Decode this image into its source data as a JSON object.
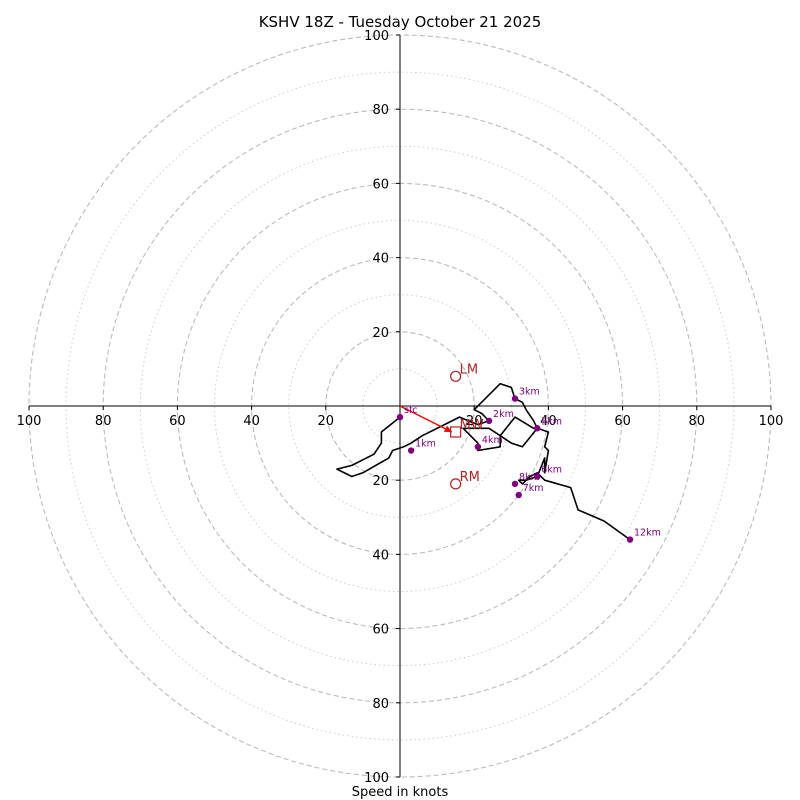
{
  "chart_data": {
    "type": "hodograph",
    "title": "KSHV 18Z - Tuesday October 21 2025",
    "xlabel": "Speed in knots",
    "units": "knots",
    "range": [
      -100,
      100
    ],
    "ring_major": [
      20,
      40,
      60,
      80,
      100
    ],
    "ring_minor": [
      10,
      30,
      50,
      70,
      90
    ],
    "tick_labels": {
      "right": [
        "20",
        "40",
        "60",
        "80",
        "100"
      ],
      "left": [
        "20",
        "40",
        "60",
        "80",
        "100"
      ],
      "top": [
        "20",
        "40",
        "60",
        "80",
        "100"
      ],
      "bottom": [
        "20",
        "40",
        "60",
        "80",
        "100"
      ]
    },
    "colors": {
      "trace": "#000000",
      "height_marker": "#800080",
      "storm_motion": "#b22222",
      "inflow_arrow": "#ff0000",
      "grid": "#bbbbbb"
    },
    "trace": [
      [
        0,
        -3
      ],
      [
        -5,
        -7
      ],
      [
        -5,
        -10
      ],
      [
        -7,
        -13
      ],
      [
        -13,
        -16
      ],
      [
        -17,
        -17
      ],
      [
        -13,
        -19
      ],
      [
        -10,
        -18
      ],
      [
        -3,
        -14
      ],
      [
        -2,
        -12
      ],
      [
        1,
        -11
      ],
      [
        3,
        -10
      ],
      [
        6,
        -8
      ],
      [
        12,
        -5
      ],
      [
        16,
        -3
      ],
      [
        21,
        -5
      ],
      [
        24,
        -4
      ],
      [
        22,
        -2
      ],
      [
        20,
        -1
      ],
      [
        27,
        6
      ],
      [
        30,
        5
      ],
      [
        31,
        2
      ],
      [
        33,
        1
      ],
      [
        34,
        -1
      ],
      [
        36,
        -4
      ],
      [
        37,
        -6
      ],
      [
        36,
        -6
      ],
      [
        31,
        -3
      ],
      [
        27,
        -8
      ],
      [
        27,
        -11
      ],
      [
        21,
        -12
      ],
      [
        21,
        -10
      ],
      [
        17,
        -6
      ],
      [
        24,
        -6
      ],
      [
        27,
        -8
      ],
      [
        30,
        -10
      ],
      [
        33,
        -11
      ],
      [
        37,
        -6
      ],
      [
        40,
        -7
      ],
      [
        39,
        -11
      ],
      [
        40,
        -12
      ],
      [
        39,
        -18
      ],
      [
        39,
        -14
      ],
      [
        37,
        -19
      ],
      [
        34,
        -20
      ],
      [
        32,
        -20
      ],
      [
        33,
        -21
      ],
      [
        35,
        -19
      ],
      [
        37,
        -18
      ],
      [
        39,
        -20
      ],
      [
        46,
        -22
      ],
      [
        48,
        -28
      ],
      [
        55,
        -31
      ],
      [
        62,
        -36
      ]
    ],
    "height_markers": [
      {
        "label": "sfc",
        "u": 0,
        "v": -3
      },
      {
        "label": "1km",
        "u": 3,
        "v": -12
      },
      {
        "label": "2km",
        "u": 24,
        "v": -4
      },
      {
        "label": "3km",
        "u": 31,
        "v": 2
      },
      {
        "label": "4km",
        "u": 21,
        "v": -11
      },
      {
        "label": "5km",
        "u": 37,
        "v": -6
      },
      {
        "label": "6km",
        "u": 37,
        "v": -19
      },
      {
        "label": "7km",
        "u": 32,
        "v": -24
      },
      {
        "label": "8km",
        "u": 31,
        "v": -21
      },
      {
        "label": "12km",
        "u": 62,
        "v": -36
      }
    ],
    "storm_motions": [
      {
        "label": "LM",
        "u": 15,
        "v": 8,
        "marker": "circle"
      },
      {
        "label": "MW",
        "u": 15,
        "v": -7,
        "marker": "square"
      },
      {
        "label": "RM",
        "u": 15,
        "v": -21,
        "marker": "circle"
      }
    ],
    "inflow_arrow": {
      "from": [
        0,
        0
      ],
      "to": [
        14,
        -7
      ]
    }
  }
}
